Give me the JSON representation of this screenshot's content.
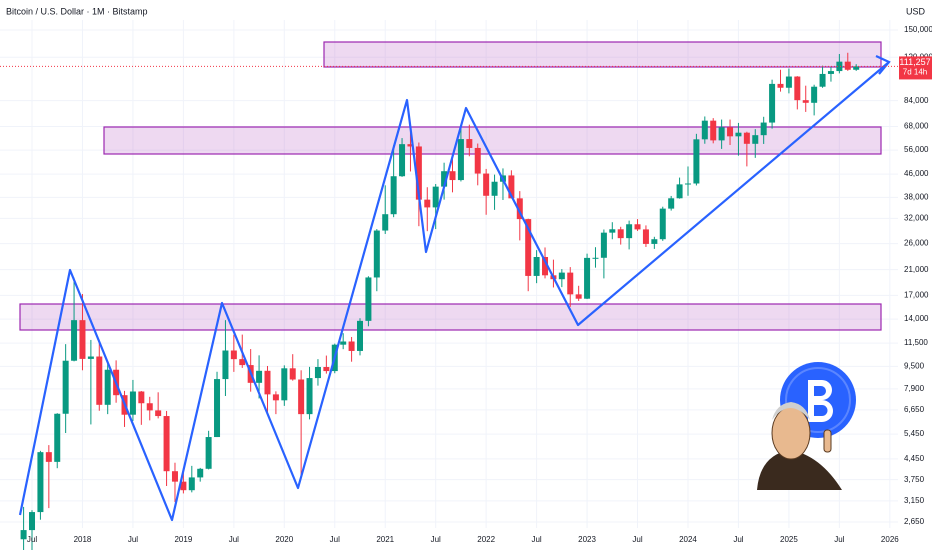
{
  "chart_data": {
    "type": "candlestick",
    "title": "Bitcoin / U.S. Dollar · 1M · Bitstamp",
    "currency_label": "USD",
    "log_scale": true,
    "grid": true,
    "up_color": "#089981",
    "down_color": "#f23645",
    "ylim": [
      2650,
      150000
    ],
    "yticks": [
      {
        "value": 2650,
        "label": "2,650"
      },
      {
        "value": 3150,
        "label": "3,150"
      },
      {
        "value": 3750,
        "label": "3,750"
      },
      {
        "value": 4450,
        "label": "4,450"
      },
      {
        "value": 5450,
        "label": "5,450"
      },
      {
        "value": 6650,
        "label": "6,650"
      },
      {
        "value": 7900,
        "label": "7,900"
      },
      {
        "value": 9500,
        "label": "9,500"
      },
      {
        "value": 11500,
        "label": "11,500"
      },
      {
        "value": 14000,
        "label": "14,000"
      },
      {
        "value": 17000,
        "label": "17,000"
      },
      {
        "value": 21000,
        "label": "21,000"
      },
      {
        "value": 26000,
        "label": "26,000"
      },
      {
        "value": 32000,
        "label": "32,000"
      },
      {
        "value": 38000,
        "label": "38,000"
      },
      {
        "value": 46000,
        "label": "46,000"
      },
      {
        "value": 56000,
        "label": "56,000"
      },
      {
        "value": 68000,
        "label": "68,000"
      },
      {
        "value": 84000,
        "label": "84,000"
      },
      {
        "value": 120000,
        "label": "120,000"
      },
      {
        "value": 150000,
        "label": "150,000"
      }
    ],
    "categories": [
      null,
      "Jul",
      null,
      null,
      null,
      null,
      null,
      "2018",
      null,
      null,
      null,
      null,
      null,
      "Jul",
      null,
      null,
      null,
      null,
      null,
      "2019",
      null,
      null,
      null,
      null,
      null,
      "Jul",
      null,
      null,
      null,
      null,
      null,
      "2020",
      null,
      null,
      null,
      null,
      null,
      "Jul",
      null,
      null,
      null,
      null,
      null,
      "2021",
      null,
      null,
      null,
      null,
      null,
      "Jul",
      null,
      null,
      null,
      null,
      null,
      "2022",
      null,
      null,
      null,
      null,
      null,
      "Jul",
      null,
      null,
      null,
      null,
      null,
      "2023",
      null,
      null,
      null,
      null,
      null,
      "Jul",
      null,
      null,
      null,
      null,
      null,
      "2024",
      null,
      null,
      null,
      null,
      null,
      "Jul",
      null,
      null,
      null,
      null,
      null,
      "2025",
      null,
      null,
      null,
      null,
      null,
      "Jul",
      null,
      null,
      null,
      null,
      null,
      "2026"
    ],
    "open": [
      2300,
      2480,
      2875,
      4700,
      4340,
      6440,
      9950,
      13880,
      10100,
      10300,
      6930,
      9240,
      7500,
      6390,
      7730,
      7020,
      6620,
      6320,
      4020,
      3690,
      3440,
      3820,
      4100,
      5320,
      8560,
      10820,
      10080,
      9600,
      8300,
      9160,
      7550,
      7190,
      9350,
      8530,
      6420,
      8630,
      9450,
      9140,
      11350,
      11650,
      10780,
      13800,
      19700,
      28950,
      33100,
      45200,
      58800,
      57700,
      37300,
      35000,
      41500,
      47100,
      43800,
      61300,
      57000,
      46200,
      38500,
      43200,
      45500,
      37700,
      31800,
      19950,
      23300,
      20050,
      19420,
      20500,
      17150,
      16550,
      23130,
      23150,
      28450,
      29250,
      27200,
      30480,
      29220,
      25940,
      26960,
      34650,
      37720,
      42280,
      42580,
      61180,
      71300,
      60650,
      67500,
      62700,
      64600,
      58970,
      63300,
      70200,
      96400,
      93400,
      102400,
      84350,
      82550,
      94200,
      104600,
      107100,
      115700,
      108250,
      null,
      null,
      null,
      null
    ],
    "high": [
      3000,
      2920,
      4750,
      4980,
      6470,
      11400,
      19660,
      17200,
      11800,
      11700,
      9750,
      9980,
      7770,
      8500,
      7760,
      7400,
      7680,
      6590,
      4310,
      4110,
      4200,
      4130,
      5600,
      9090,
      13880,
      12320,
      12330,
      10950,
      10400,
      9530,
      7740,
      9580,
      10500,
      9200,
      9460,
      10080,
      10380,
      11450,
      12470,
      12090,
      14100,
      19900,
      29300,
      41950,
      58350,
      61800,
      64900,
      59600,
      41300,
      42400,
      50500,
      52900,
      67000,
      69000,
      59100,
      47990,
      45800,
      48200,
      47450,
      40000,
      31900,
      24650,
      25200,
      22800,
      21100,
      21450,
      18400,
      23950,
      25250,
      29200,
      31000,
      29850,
      31400,
      31800,
      30200,
      27500,
      35200,
      38450,
      44700,
      48970,
      64000,
      73800,
      72800,
      71950,
      71950,
      70000,
      65100,
      66500,
      73600,
      99800,
      108300,
      109350,
      102750,
      95000,
      95750,
      111950,
      110600,
      123200,
      124450,
      113300,
      null,
      null,
      null,
      null
    ],
    "low": [
      2100,
      1840,
      2700,
      2970,
      4120,
      5500,
      9900,
      9200,
      5900,
      6600,
      6420,
      7050,
      5780,
      6070,
      5880,
      6100,
      6200,
      3560,
      3120,
      3350,
      3380,
      3690,
      4080,
      5320,
      7450,
      9080,
      9380,
      7720,
      7300,
      6520,
      6420,
      6870,
      8450,
      3850,
      6150,
      8110,
      8950,
      8980,
      10940,
      9870,
      10400,
      13200,
      17600,
      28150,
      32300,
      44950,
      47000,
      30000,
      28800,
      29300,
      37300,
      39600,
      43300,
      53250,
      41950,
      32950,
      34300,
      37200,
      37700,
      26700,
      17600,
      18800,
      19550,
      18150,
      18200,
      15480,
      16250,
      16500,
      21350,
      19550,
      26950,
      25800,
      24800,
      28850,
      25300,
      24900,
      26600,
      34100,
      37600,
      38500,
      41900,
      59000,
      59200,
      56550,
      58400,
      53500,
      49000,
      52550,
      58900,
      66800,
      90500,
      89200,
      78200,
      76600,
      74450,
      93350,
      98200,
      105100,
      107300,
      107250,
      null,
      null,
      null,
      null
    ],
    "close": [
      2480,
      2875,
      4700,
      4340,
      6440,
      9950,
      13880,
      10100,
      10300,
      6930,
      9240,
      7500,
      6390,
      7730,
      7020,
      6620,
      6320,
      4020,
      3690,
      3440,
      3820,
      4100,
      5320,
      8560,
      10820,
      10080,
      9600,
      8300,
      9160,
      7550,
      7190,
      9350,
      8530,
      6420,
      8630,
      9450,
      9140,
      11350,
      11650,
      10780,
      13800,
      19700,
      28950,
      33100,
      45200,
      58800,
      57700,
      37300,
      35000,
      41500,
      47100,
      43800,
      61300,
      57000,
      46200,
      38500,
      43200,
      45500,
      37700,
      31800,
      19950,
      23300,
      20050,
      19420,
      20500,
      17150,
      16550,
      23130,
      23150,
      28450,
      29250,
      27200,
      30480,
      29220,
      25940,
      26960,
      34650,
      37720,
      42280,
      42580,
      61180,
      71300,
      60650,
      67500,
      62700,
      64600,
      58970,
      63300,
      70200,
      96400,
      93400,
      102400,
      84350,
      82550,
      94200,
      104600,
      107100,
      115700,
      108250,
      111257,
      null,
      null,
      null,
      null
    ],
    "last_price": 111257,
    "last_price_label": "111,257",
    "countdown": "7d 14h"
  }
}
